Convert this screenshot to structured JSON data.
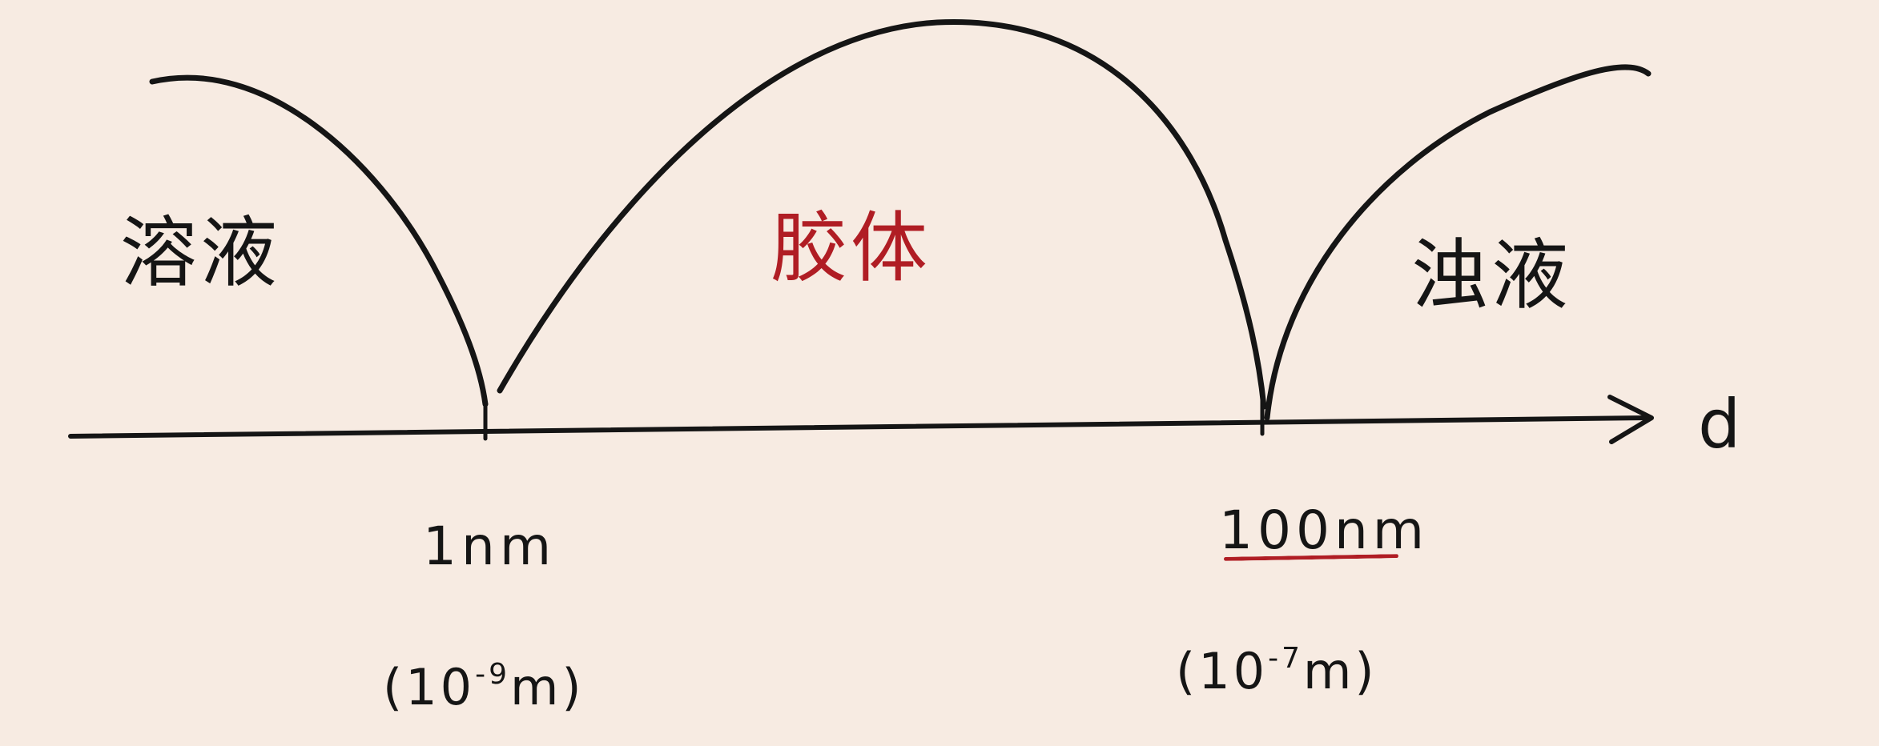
{
  "diagram": {
    "axis": {
      "label": "d"
    },
    "regions": [
      {
        "label": "溶液",
        "color": "#151515"
      },
      {
        "label": "胶体",
        "color": "#b01d24"
      },
      {
        "label": "浊液",
        "color": "#151515"
      }
    ],
    "ticks": [
      {
        "label": "1nm",
        "sci_open": "(10",
        "sci_exp": "-9",
        "sci_close": "m)"
      },
      {
        "label": "100nm",
        "sci_open": "(10",
        "sci_exp": "-7",
        "sci_close": "m)",
        "underline_color": "#b01d24"
      }
    ],
    "colors": {
      "background": "#f7ebe2",
      "ink": "#151515",
      "accent": "#b01d24"
    }
  }
}
